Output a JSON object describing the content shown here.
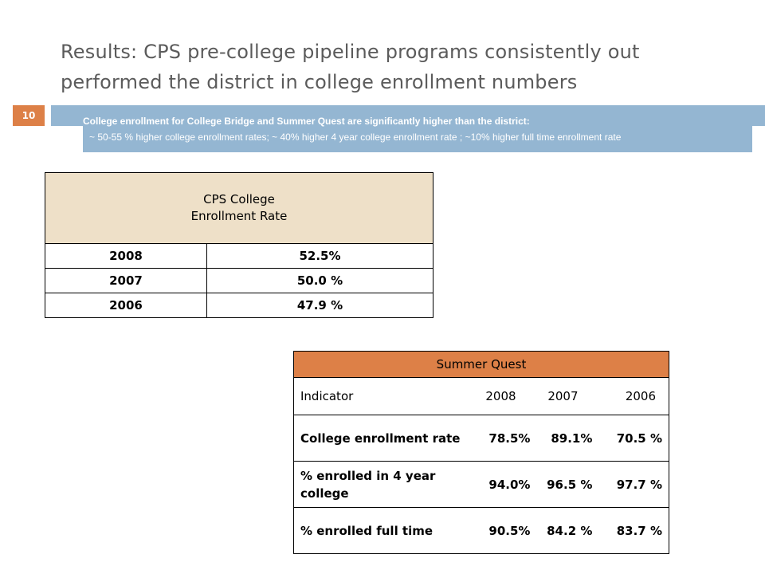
{
  "slide": {
    "title": "Results:  CPS pre-college pipeline programs consistently out performed the district in college enrollment numbers",
    "number": "10",
    "subtitle_line1": "College enrollment for College Bridge and Summer Quest are significantly higher than the district:",
    "subtitle_line2": "~ 50-55 % higher college enrollment rates; ~ 40% higher 4 year college enrollment rate ; ~10% higher full time enrollment rate"
  },
  "cps_table": {
    "header_line1": "CPS College",
    "header_line2": "Enrollment Rate",
    "rows": [
      {
        "year": "2008",
        "rate": "52.5%"
      },
      {
        "year": "2007",
        "rate": "50.0 %"
      },
      {
        "year": "2006",
        "rate": "47.9 %"
      }
    ]
  },
  "sq_table": {
    "title": "Summer Quest",
    "columns": [
      "Indicator",
      "2008",
      "2007",
      "2006"
    ],
    "rows": [
      {
        "indicator": "College enrollment rate",
        "v2008": "78.5%",
        "v2007": "89.1%",
        "v2006": "70.5 %"
      },
      {
        "indicator": "% enrolled in 4 year college",
        "v2008": "94.0%",
        "v2007": "96.5 %",
        "v2006": "97.7 %"
      },
      {
        "indicator": "% enrolled full time",
        "v2008": "90.5%",
        "v2007": "84.2 %",
        "v2006": "83.7 %"
      }
    ]
  },
  "colors": {
    "accent_orange": "#dd8047",
    "accent_blue": "#94b6d2",
    "table_header_tan": "#eee0c8",
    "title_gray": "#5b5b5b"
  }
}
